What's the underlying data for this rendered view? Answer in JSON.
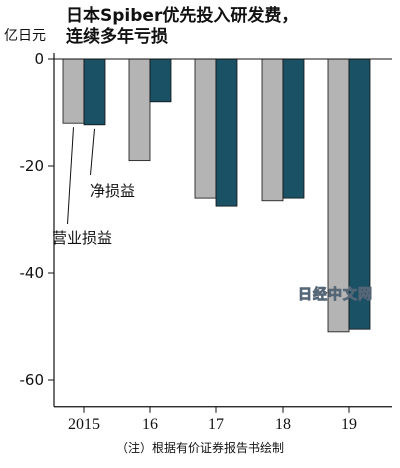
{
  "chart_data": {
    "type": "bar",
    "title": "日本Spiber优先投入研发费，\n连续多年亏损",
    "ylabel": "亿日元",
    "categories": [
      "2015",
      "16",
      "17",
      "18",
      "19"
    ],
    "series": [
      {
        "name": "营业损益",
        "values": [
          -12,
          -19,
          -26,
          -26.5,
          -51
        ],
        "color": "#b4b4b4"
      },
      {
        "name": "净损益",
        "values": [
          -12.3,
          -8,
          -27.5,
          -26,
          -50.5
        ],
        "color": "#1b5165"
      }
    ],
    "ylim": [
      -65,
      0
    ],
    "yticks": [
      0,
      -20,
      -40,
      -60
    ],
    "grid": false,
    "legend": "annotations",
    "annotations": [
      {
        "text": "净损益",
        "series": 1
      },
      {
        "text": "营业损益",
        "series": 0
      }
    ],
    "note": "（注）根据有价证券报告书绘制",
    "watermark": "日经中文网"
  }
}
